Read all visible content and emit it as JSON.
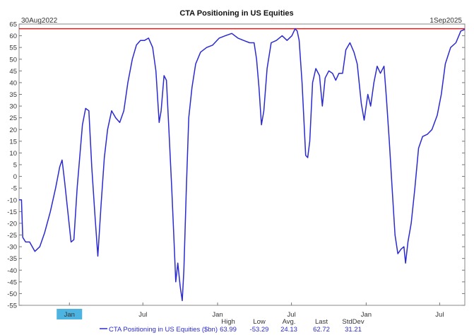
{
  "chart_data": {
    "type": "line",
    "title": "CTA Positioning in US Equities",
    "start_label": "30Aug2022",
    "end_label": "1Sep2025",
    "xlim": [
      "2022-08-30",
      "2025-09-01"
    ],
    "ylim": [
      -55,
      65
    ],
    "y_ticks": [
      65,
      60,
      55,
      50,
      45,
      40,
      35,
      30,
      25,
      20,
      15,
      10,
      5,
      0,
      -5,
      -10,
      -15,
      -20,
      -25,
      -30,
      -35,
      -40,
      -45,
      -50,
      -55
    ],
    "x_ticks": [
      {
        "date": "2023-01-01",
        "label": "Jan",
        "highlight": true
      },
      {
        "date": "2023-07-01",
        "label": "Jul"
      },
      {
        "date": "2024-01-01",
        "label": "Jan"
      },
      {
        "date": "2024-07-01",
        "label": "Jul"
      },
      {
        "date": "2025-01-01",
        "label": "Jan"
      },
      {
        "date": "2025-07-01",
        "label": "Jul"
      }
    ],
    "reference_line": {
      "value": 63,
      "color": "#cc2222"
    },
    "line_color": "#2a2ad0",
    "grid": false,
    "series": [
      {
        "name": "CTA Positioning in US Equities ($bn)",
        "points": [
          [
            "2022-08-30",
            -10
          ],
          [
            "2022-09-05",
            -10
          ],
          [
            "2022-09-08",
            -26
          ],
          [
            "2022-09-15",
            -28
          ],
          [
            "2022-09-25",
            -28
          ],
          [
            "2022-10-08",
            -32
          ],
          [
            "2022-10-20",
            -30
          ],
          [
            "2022-11-01",
            -24
          ],
          [
            "2022-11-15",
            -15
          ],
          [
            "2022-11-28",
            -5
          ],
          [
            "2022-12-08",
            4
          ],
          [
            "2022-12-14",
            7
          ],
          [
            "2022-12-20",
            -2
          ],
          [
            "2022-12-28",
            -15
          ],
          [
            "2023-01-05",
            -28
          ],
          [
            "2023-01-12",
            -27
          ],
          [
            "2023-01-20",
            -5
          ],
          [
            "2023-02-02",
            22
          ],
          [
            "2023-02-10",
            29
          ],
          [
            "2023-02-18",
            28
          ],
          [
            "2023-02-25",
            4
          ],
          [
            "2023-03-05",
            -17
          ],
          [
            "2023-03-12",
            -34
          ],
          [
            "2023-03-20",
            -12
          ],
          [
            "2023-03-28",
            8
          ],
          [
            "2023-04-05",
            20
          ],
          [
            "2023-04-15",
            28
          ],
          [
            "2023-04-25",
            25
          ],
          [
            "2023-05-05",
            23
          ],
          [
            "2023-05-15",
            28
          ],
          [
            "2023-05-25",
            40
          ],
          [
            "2023-06-05",
            50
          ],
          [
            "2023-06-15",
            56
          ],
          [
            "2023-06-25",
            58
          ],
          [
            "2023-07-05",
            58
          ],
          [
            "2023-07-15",
            59
          ],
          [
            "2023-07-25",
            55
          ],
          [
            "2023-08-02",
            45
          ],
          [
            "2023-08-10",
            23
          ],
          [
            "2023-08-15",
            28
          ],
          [
            "2023-08-22",
            43
          ],
          [
            "2023-08-28",
            41
          ],
          [
            "2023-09-03",
            20
          ],
          [
            "2023-09-10",
            -5
          ],
          [
            "2023-09-15",
            -25
          ],
          [
            "2023-09-20",
            -45
          ],
          [
            "2023-09-25",
            -37
          ],
          [
            "2023-10-01",
            -47
          ],
          [
            "2023-10-06",
            -53
          ],
          [
            "2023-10-10",
            -40
          ],
          [
            "2023-10-16",
            -5
          ],
          [
            "2023-10-22",
            25
          ],
          [
            "2023-10-30",
            38
          ],
          [
            "2023-11-08",
            48
          ],
          [
            "2023-11-20",
            53
          ],
          [
            "2023-12-05",
            55
          ],
          [
            "2023-12-20",
            56
          ],
          [
            "2024-01-05",
            59
          ],
          [
            "2024-01-20",
            60
          ],
          [
            "2024-02-05",
            61
          ],
          [
            "2024-02-20",
            59
          ],
          [
            "2024-03-05",
            58
          ],
          [
            "2024-03-20",
            57
          ],
          [
            "2024-03-31",
            57
          ],
          [
            "2024-04-06",
            50
          ],
          [
            "2024-04-12",
            38
          ],
          [
            "2024-04-18",
            22
          ],
          [
            "2024-04-24",
            28
          ],
          [
            "2024-05-02",
            46
          ],
          [
            "2024-05-12",
            57
          ],
          [
            "2024-05-25",
            58
          ],
          [
            "2024-06-08",
            60
          ],
          [
            "2024-06-20",
            58
          ],
          [
            "2024-07-02",
            60
          ],
          [
            "2024-07-10",
            63
          ],
          [
            "2024-07-15",
            62
          ],
          [
            "2024-07-20",
            58
          ],
          [
            "2024-07-27",
            40
          ],
          [
            "2024-08-05",
            9
          ],
          [
            "2024-08-10",
            8
          ],
          [
            "2024-08-15",
            15
          ],
          [
            "2024-08-22",
            40
          ],
          [
            "2024-08-30",
            46
          ],
          [
            "2024-09-08",
            43
          ],
          [
            "2024-09-15",
            30
          ],
          [
            "2024-09-22",
            42
          ],
          [
            "2024-10-01",
            45
          ],
          [
            "2024-10-10",
            44
          ],
          [
            "2024-10-18",
            41
          ],
          [
            "2024-10-26",
            44
          ],
          [
            "2024-11-04",
            44
          ],
          [
            "2024-11-12",
            54
          ],
          [
            "2024-11-22",
            57
          ],
          [
            "2024-12-02",
            53
          ],
          [
            "2024-12-10",
            48
          ],
          [
            "2024-12-20",
            31
          ],
          [
            "2024-12-27",
            24
          ],
          [
            "2025-01-05",
            35
          ],
          [
            "2025-01-12",
            30
          ],
          [
            "2025-01-20",
            40
          ],
          [
            "2025-01-28",
            47
          ],
          [
            "2025-02-05",
            44
          ],
          [
            "2025-02-14",
            47
          ],
          [
            "2025-02-20",
            33
          ],
          [
            "2025-02-27",
            15
          ],
          [
            "2025-03-06",
            -5
          ],
          [
            "2025-03-13",
            -25
          ],
          [
            "2025-03-20",
            -33
          ],
          [
            "2025-03-28",
            -31
          ],
          [
            "2025-04-04",
            -30
          ],
          [
            "2025-04-08",
            -37
          ],
          [
            "2025-04-14",
            -28
          ],
          [
            "2025-04-22",
            -20
          ],
          [
            "2025-05-01",
            -5
          ],
          [
            "2025-05-10",
            12
          ],
          [
            "2025-05-20",
            17
          ],
          [
            "2025-06-01",
            18
          ],
          [
            "2025-06-12",
            20
          ],
          [
            "2025-06-25",
            26
          ],
          [
            "2025-07-05",
            35
          ],
          [
            "2025-07-15",
            48
          ],
          [
            "2025-07-28",
            55
          ],
          [
            "2025-08-10",
            57
          ],
          [
            "2025-08-22",
            62
          ],
          [
            "2025-09-01",
            62.72
          ]
        ]
      }
    ],
    "stats": {
      "headers": [
        "High",
        "Low",
        "Avg.",
        "Last",
        "StdDev"
      ],
      "values": [
        "63.99",
        "-53.29",
        "24.13",
        "62.72",
        "31.21"
      ]
    }
  }
}
